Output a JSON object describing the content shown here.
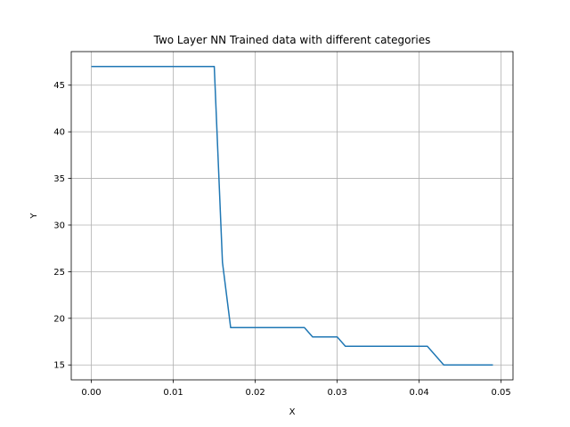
{
  "chart_data": {
    "type": "line",
    "title": "Two Layer NN Trained data with different categories",
    "xlabel": "X",
    "ylabel": "Y",
    "xlim": [
      -0.00245,
      0.05145
    ],
    "ylim": [
      13.4,
      48.6
    ],
    "xticks": [
      0.0,
      0.01,
      0.02,
      0.03,
      0.04,
      0.05
    ],
    "xtick_labels": [
      "0.00",
      "0.01",
      "0.02",
      "0.03",
      "0.04",
      "0.05"
    ],
    "yticks": [
      15,
      20,
      25,
      30,
      35,
      40,
      45
    ],
    "ytick_labels": [
      "15",
      "20",
      "25",
      "30",
      "35",
      "40",
      "45"
    ],
    "grid": true,
    "series": [
      {
        "color": "#1f77b4",
        "x": [
          0.0,
          0.001,
          0.002,
          0.003,
          0.004,
          0.005,
          0.006,
          0.007,
          0.008,
          0.009,
          0.01,
          0.011,
          0.012,
          0.013,
          0.014,
          0.015,
          0.016,
          0.017,
          0.018,
          0.019,
          0.02,
          0.021,
          0.022,
          0.023,
          0.024,
          0.025,
          0.026,
          0.027,
          0.028,
          0.029,
          0.03,
          0.031,
          0.032,
          0.033,
          0.034,
          0.035,
          0.036,
          0.037,
          0.038,
          0.039,
          0.04,
          0.041,
          0.042,
          0.043,
          0.044,
          0.045,
          0.046,
          0.047,
          0.048,
          0.049
        ],
        "y": [
          47,
          47,
          47,
          47,
          47,
          47,
          47,
          47,
          47,
          47,
          47,
          47,
          47,
          47,
          47,
          47,
          26,
          19,
          19,
          19,
          19,
          19,
          19,
          19,
          19,
          19,
          19,
          18,
          18,
          18,
          18,
          17,
          17,
          17,
          17,
          17,
          17,
          17,
          17,
          17,
          17,
          17,
          16,
          15,
          15,
          15,
          15,
          15,
          15,
          15
        ]
      }
    ]
  }
}
